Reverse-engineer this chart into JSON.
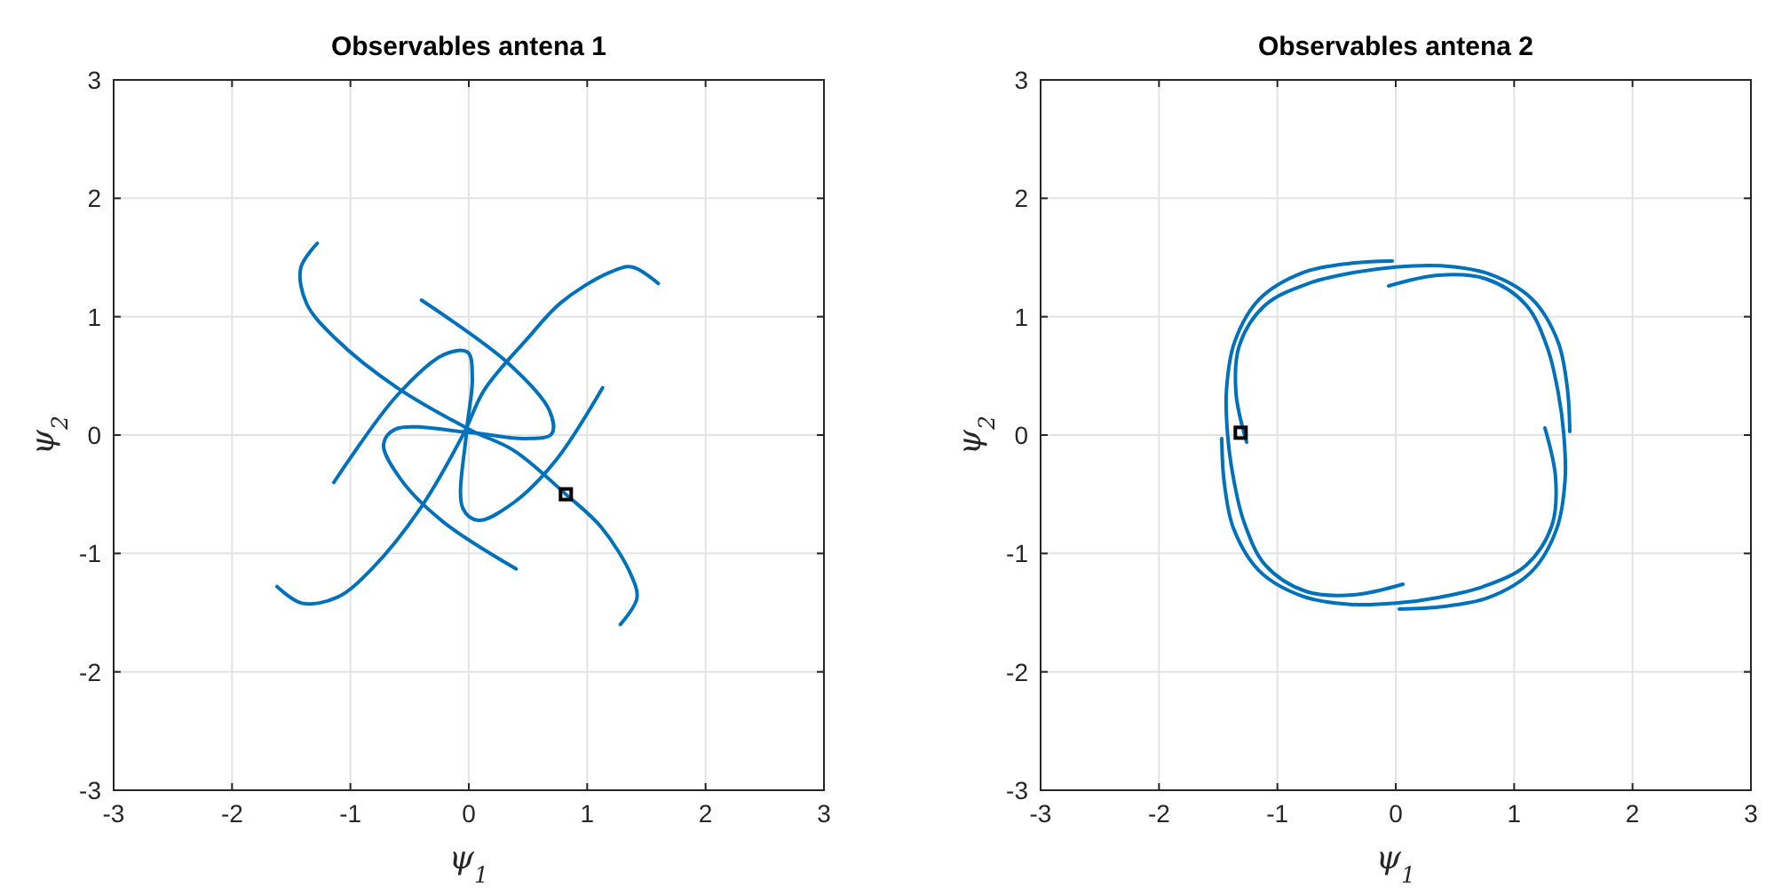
{
  "chart_data": [
    {
      "type": "line",
      "title": "Observables antena 1",
      "xlabel": "ψ$_{1}$",
      "ylabel": "ψ$_{2}$",
      "xlim": [
        -3,
        3
      ],
      "ylim": [
        -3,
        3
      ],
      "xticks": [
        -3,
        -2,
        -1,
        0,
        1,
        2,
        3
      ],
      "yticks": [
        -3,
        -2,
        -1,
        0,
        1,
        2,
        3
      ],
      "grid": true,
      "marker": "none",
      "line_style": "solid",
      "series": [
        {
          "color": "#0072bd",
          "x": [
            -1.28,
            -1.42,
            -1.37,
            -1.12,
            -0.62,
            0.02,
            0.38,
            0.82,
            1.12,
            1.37,
            1.42,
            1.28
          ],
          "values": [
            1.62,
            1.41,
            1.11,
            0.81,
            0.41,
            0.04,
            -0.13,
            -0.5,
            -0.78,
            -1.18,
            -1.38,
            -1.6
          ]
        },
        {
          "color": "#0072bd",
          "x": [
            -1.62,
            -1.41,
            -1.11,
            -0.81,
            -0.41,
            -0.04,
            0.13,
            0.5,
            0.78,
            1.18,
            1.38,
            1.6
          ],
          "values": [
            -1.28,
            -1.42,
            -1.37,
            -1.12,
            -0.62,
            0.02,
            0.38,
            0.82,
            1.12,
            1.37,
            1.42,
            1.28
          ]
        },
        {
          "color": "#0072bd",
          "x": [
            -0.4,
            0.33,
            0.68,
            0.7,
            0.48,
            0.02,
            -0.62,
            -0.72,
            -0.57,
            -0.22,
            0.4
          ],
          "values": [
            1.14,
            0.61,
            0.21,
            0.01,
            -0.03,
            0.02,
            0.05,
            -0.08,
            -0.38,
            -0.73,
            -1.13
          ]
        },
        {
          "color": "#0072bd",
          "x": [
            -1.14,
            -0.61,
            -0.21,
            -0.01,
            0.03,
            -0.02,
            -0.05,
            0.08,
            0.38,
            0.73,
            1.13
          ],
          "values": [
            -0.4,
            0.33,
            0.68,
            0.7,
            0.48,
            0.02,
            -0.62,
            -0.72,
            -0.57,
            -0.22,
            0.4
          ]
        },
        {
          "type": "scatter",
          "marker": "square",
          "color": "#000000",
          "x": [
            0.82
          ],
          "values": [
            -0.5
          ]
        }
      ]
    },
    {
      "type": "line",
      "title": "Observables antena 2",
      "xlabel": "ψ$_{1}$",
      "ylabel": "ψ$_{2}$",
      "xlim": [
        -3,
        3
      ],
      "ylim": [
        -3,
        3
      ],
      "xticks": [
        -3,
        -2,
        -1,
        0,
        1,
        2,
        3
      ],
      "yticks": [
        -3,
        -2,
        -1,
        0,
        1,
        2,
        3
      ],
      "grid": true,
      "marker": "none",
      "line_style": "solid",
      "series": [
        {
          "color": "#0072bd",
          "x": [
            -0.03,
            -0.39,
            -0.79,
            -1.15,
            -1.36,
            -1.43,
            -1.42,
            -1.37,
            -1.28,
            -1.1,
            -0.76,
            -0.36,
            0.06
          ],
          "values": [
            1.47,
            1.45,
            1.37,
            1.15,
            0.79,
            0.38,
            0,
            -0.37,
            -0.74,
            -1.1,
            -1.32,
            -1.35,
            -1.26
          ]
        },
        {
          "color": "#0072bd",
          "x": [
            -1.47,
            -1.45,
            -1.37,
            -1.15,
            -0.79,
            -0.38,
            0,
            0.37,
            0.74,
            1.1,
            1.32,
            1.35,
            1.26
          ],
          "values": [
            -0.03,
            -0.39,
            -0.79,
            -1.15,
            -1.36,
            -1.43,
            -1.42,
            -1.37,
            -1.28,
            -1.1,
            -0.76,
            -0.36,
            0.06
          ]
        },
        {
          "color": "#0072bd",
          "x": [
            0.03,
            0.39,
            0.79,
            1.15,
            1.36,
            1.43,
            1.42,
            1.37,
            1.28,
            1.1,
            0.76,
            0.36,
            -0.06
          ],
          "values": [
            -1.47,
            -1.45,
            -1.37,
            -1.15,
            -0.79,
            -0.38,
            0,
            0.37,
            0.74,
            1.1,
            1.32,
            1.35,
            1.26
          ]
        },
        {
          "color": "#0072bd",
          "x": [
            1.47,
            1.45,
            1.37,
            1.15,
            0.79,
            0.38,
            0,
            -0.37,
            -0.74,
            -1.1,
            -1.32,
            -1.35,
            -1.26
          ],
          "values": [
            0.03,
            0.39,
            0.79,
            1.15,
            1.36,
            1.43,
            1.42,
            1.37,
            1.28,
            1.1,
            0.76,
            0.36,
            -0.06
          ]
        },
        {
          "type": "scatter",
          "marker": "square",
          "color": "#000000",
          "x": [
            -1.31
          ],
          "values": [
            0.02
          ]
        }
      ]
    }
  ]
}
